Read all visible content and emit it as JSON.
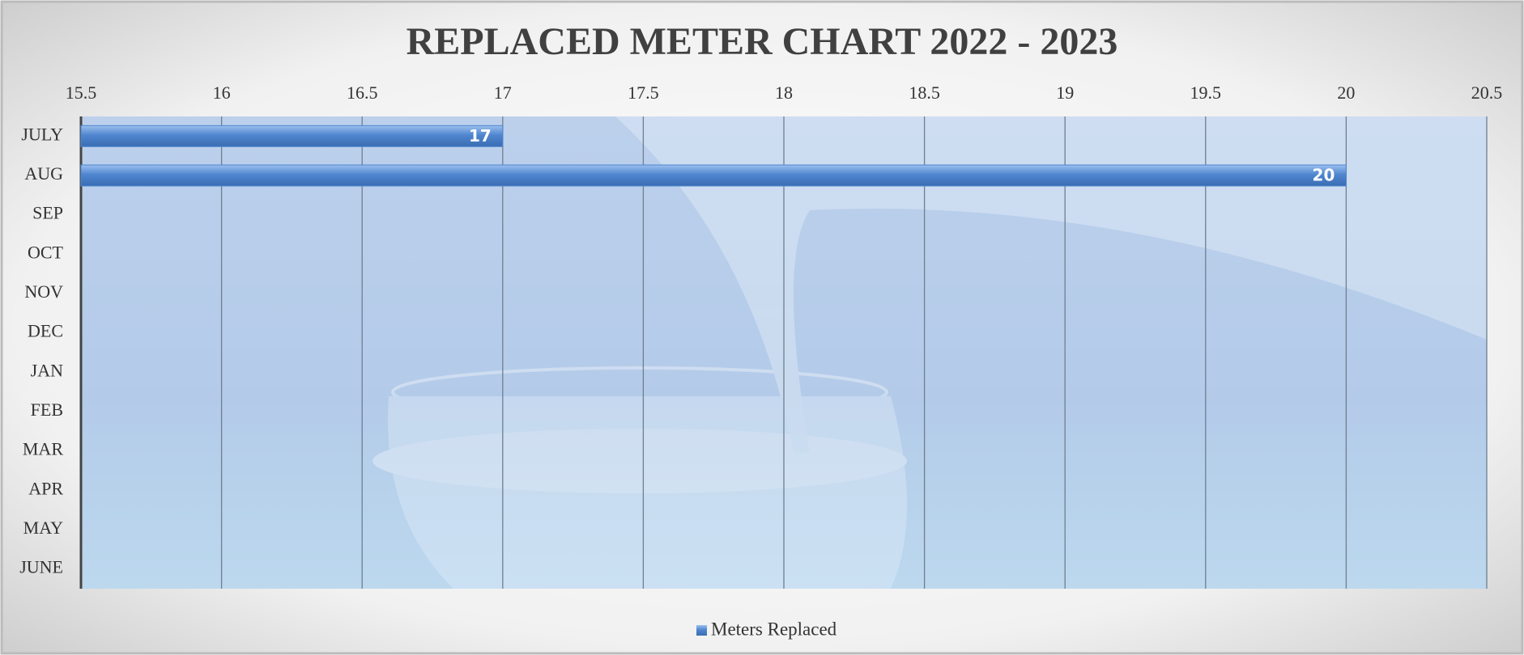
{
  "chart_data": {
    "type": "bar",
    "orientation": "horizontal",
    "title": "REPLACED METER CHART 2022 - 2023",
    "categories": [
      "JULY",
      "AUG",
      "SEP",
      "OCT",
      "NOV",
      "DEC",
      "JAN",
      "FEB",
      "MAR",
      "APR",
      "MAY",
      "JUNE"
    ],
    "series": [
      {
        "name": "Meters Replaced",
        "color": "#4f86cf",
        "values": [
          17,
          20,
          null,
          null,
          null,
          null,
          null,
          null,
          null,
          null,
          null,
          null
        ]
      }
    ],
    "xlim": [
      15.5,
      20.5
    ],
    "xticks": [
      15.5,
      16,
      16.5,
      17,
      17.5,
      18,
      18.5,
      19,
      19.5,
      20,
      20.5
    ],
    "grid": true,
    "legend": "bottom"
  }
}
